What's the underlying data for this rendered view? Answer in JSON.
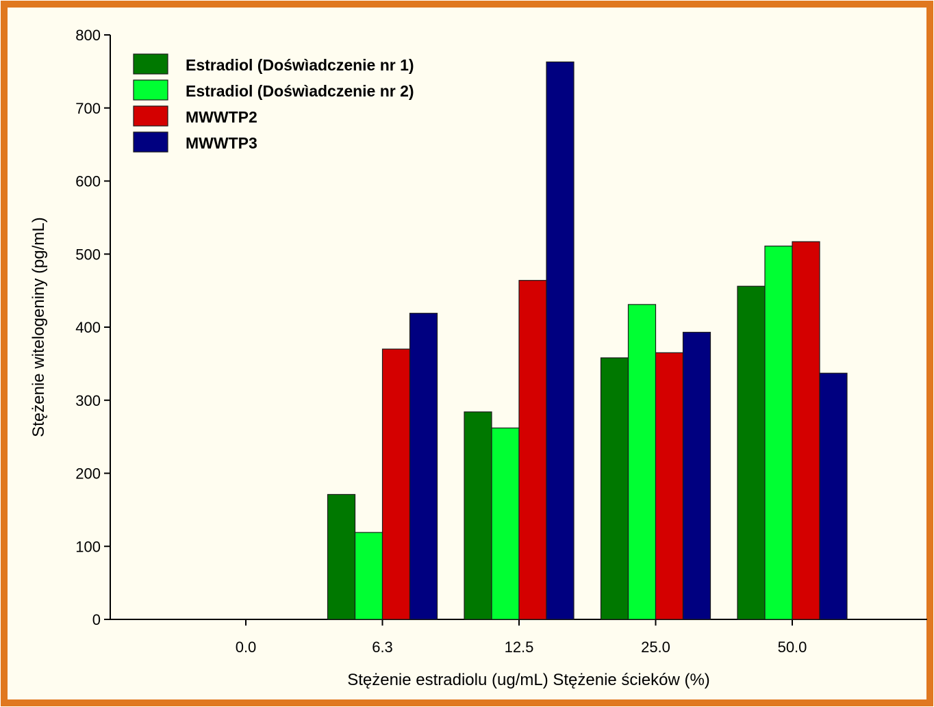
{
  "chart_data": {
    "type": "bar",
    "categories": [
      "0.0",
      "6.3",
      "12.5",
      "25.0",
      "50.0"
    ],
    "series": [
      {
        "name": "Estradiol (Dośwìadczenie nr 1)",
        "color": "#007800",
        "values": [
          0,
          171,
          284,
          358,
          456
        ]
      },
      {
        "name": "Estradiol (Dośwìadczenie nr 2)",
        "color": "#00ff33",
        "values": [
          0,
          119,
          262,
          431,
          511
        ]
      },
      {
        "name": "MWWTP2",
        "color": "#d40000",
        "values": [
          0,
          370,
          464,
          365,
          517
        ]
      },
      {
        "name": "MWWTP3",
        "color": "#000080",
        "values": [
          0,
          419,
          763,
          393,
          337
        ]
      }
    ],
    "title": "",
    "xlabel": "Stężenie estradiolu (ug/mL)  Stężenie ścieków (%)",
    "ylabel": "Stężenie witelogeniny (pg/mL)",
    "ylim": [
      0,
      800
    ],
    "yticks": [
      0,
      100,
      200,
      300,
      400,
      500,
      600,
      700,
      800
    ],
    "grid": false,
    "legend_position": "top-left",
    "frame_color": "#e07820",
    "background_color": "#fffdf0"
  }
}
